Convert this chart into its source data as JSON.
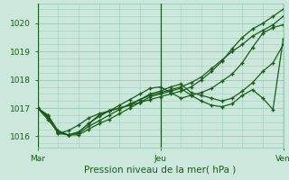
{
  "xlabel": "Pression niveau de la mer( hPa )",
  "bg_color": "#cce8dc",
  "grid_color": "#9ecfb8",
  "line_color": "#1a5c1a",
  "xtick_labels": [
    "Mar",
    "Jeu",
    "Ven"
  ],
  "xtick_positions": [
    0,
    48,
    96
  ],
  "ytick_values": [
    1016,
    1017,
    1018,
    1019,
    1020
  ],
  "ylim": [
    1015.6,
    1020.7
  ],
  "xlim": [
    0,
    96
  ],
  "n_points": 25,
  "series": [
    [
      1017.0,
      1016.75,
      1016.1,
      1016.05,
      1016.1,
      1016.35,
      1016.55,
      1016.75,
      1016.95,
      1017.15,
      1017.3,
      1017.45,
      1017.55,
      1017.65,
      1017.75,
      1017.9,
      1018.1,
      1018.4,
      1018.7,
      1019.0,
      1019.25,
      1019.55,
      1019.75,
      1019.95,
      1020.25
    ],
    [
      1017.0,
      1016.7,
      1016.1,
      1016.2,
      1016.4,
      1016.65,
      1016.8,
      1016.9,
      1017.0,
      1017.1,
      1017.2,
      1017.3,
      1017.4,
      1017.5,
      1017.6,
      1017.75,
      1018.0,
      1018.3,
      1018.65,
      1019.1,
      1019.5,
      1019.8,
      1020.0,
      1020.25,
      1020.5
    ],
    [
      1017.0,
      1016.75,
      1016.2,
      1016.05,
      1016.05,
      1016.25,
      1016.45,
      1016.6,
      1016.8,
      1017.0,
      1017.2,
      1017.4,
      1017.5,
      1017.6,
      1017.7,
      1017.45,
      1017.55,
      1017.7,
      1017.95,
      1018.2,
      1018.6,
      1019.15,
      1019.65,
      1019.85,
      1019.95
    ],
    [
      1017.0,
      1016.6,
      1016.15,
      1016.05,
      1016.15,
      1016.45,
      1016.7,
      1016.9,
      1017.1,
      1017.3,
      1017.5,
      1017.7,
      1017.75,
      1017.55,
      1017.35,
      1017.45,
      1017.25,
      1017.1,
      1017.05,
      1017.15,
      1017.45,
      1017.65,
      1017.35,
      1016.95,
      1019.45
    ],
    [
      1017.0,
      1016.65,
      1016.15,
      1016.05,
      1016.15,
      1016.45,
      1016.75,
      1016.9,
      1017.0,
      1017.1,
      1017.3,
      1017.5,
      1017.6,
      1017.75,
      1017.85,
      1017.55,
      1017.45,
      1017.35,
      1017.25,
      1017.35,
      1017.6,
      1017.9,
      1018.3,
      1018.6,
      1019.25
    ]
  ]
}
